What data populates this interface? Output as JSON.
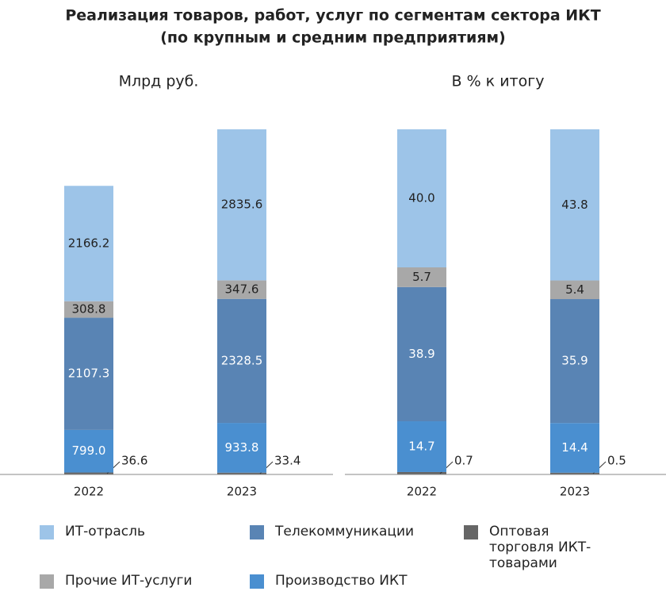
{
  "title": "Реализация товаров, работ, услуг по сегментам сектора ИКТ",
  "subtitle": "(по крупным и средним предприятиям)",
  "chart_data": [
    {
      "type": "bar",
      "stacked": true,
      "title": "Млрд руб.",
      "categories": [
        "2022",
        "2023"
      ],
      "series": [
        {
          "name": "Оптовая торговля ИКТ-товарами",
          "color": "#666666",
          "values": [
            36.6,
            33.4
          ],
          "value_labels": [
            "36.6",
            "33.4"
          ]
        },
        {
          "name": "Производство ИКТ",
          "color": "#4a8fd0",
          "values": [
            799.0,
            933.8
          ],
          "value_labels": [
            "799.0",
            "933.8"
          ]
        },
        {
          "name": "Телекоммуникации",
          "color": "#5984b4",
          "values": [
            2107.3,
            2328.5
          ],
          "value_labels": [
            "2107.3",
            "2328.5"
          ]
        },
        {
          "name": "Прочие ИТ-услуги",
          "color": "#a8a8a8",
          "values": [
            308.8,
            347.6
          ],
          "value_labels": [
            "308.8",
            "347.6"
          ]
        },
        {
          "name": "ИТ-отрасль",
          "color": "#9dc4e8",
          "values": [
            2166.2,
            2835.6
          ],
          "value_labels": [
            "2166.2",
            "2835.6"
          ]
        }
      ]
    },
    {
      "type": "bar",
      "stacked": true,
      "title": "В % к итогу",
      "categories": [
        "2022",
        "2023"
      ],
      "series": [
        {
          "color": "#666666",
          "values": [
            0.7,
            0.5
          ],
          "value_labels": [
            "0.7",
            "0.5"
          ]
        },
        {
          "color": "#4a8fd0",
          "values": [
            14.7,
            14.4
          ],
          "value_labels": [
            "14.7",
            "14.4"
          ]
        },
        {
          "color": "#5984b4",
          "values": [
            38.9,
            35.9
          ],
          "value_labels": [
            "38.9",
            "35.9"
          ]
        },
        {
          "color": "#a8a8a8",
          "values": [
            5.7,
            5.4
          ],
          "value_labels": [
            "5.7",
            "5.4"
          ]
        },
        {
          "color": "#9dc4e8",
          "values": [
            40.0,
            43.8
          ],
          "value_labels": [
            "40.0",
            "43.8"
          ]
        }
      ]
    }
  ]
}
